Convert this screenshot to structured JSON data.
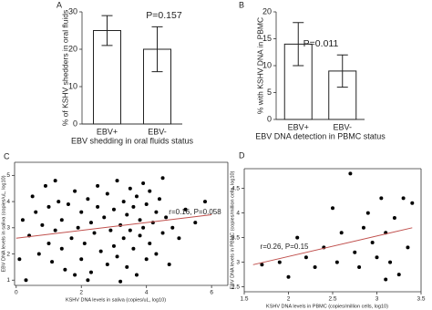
{
  "chart_data": [
    {
      "type": "bar",
      "panel_label": "A",
      "ylabel": "% of KSHV shedders in oral fluids",
      "xlabel": "EBV shedding in oral fluids status",
      "annotation": "P=0.157",
      "categories": [
        "EBV+",
        "EBV-"
      ],
      "values": [
        25,
        20
      ],
      "errors": [
        4,
        6
      ],
      "color": "#ffffff",
      "ylim": [
        0,
        30
      ],
      "yticks": [
        0,
        10,
        20,
        30
      ]
    },
    {
      "type": "bar",
      "panel_label": "B",
      "ylabel": "% with KSHV DNA in PBMC",
      "xlabel": "EBV DNA detection in PBMC status",
      "annotation": "P=0.011",
      "categories": [
        "EBV+",
        "EBV-"
      ],
      "values": [
        14,
        9
      ],
      "errors": [
        4,
        3
      ],
      "color": "#ffffff",
      "ylim": [
        0,
        20
      ],
      "yticks": [
        0,
        5,
        10,
        15,
        20
      ]
    },
    {
      "type": "scatter",
      "panel_label": "C",
      "ylabel": "EBV DNA levels in saliva (copies/uL, log10)",
      "xlabel": "KSHV DNA levels in saliva (copies/uL, log10)",
      "annotation": "r=0.16, P=0.058",
      "color": "#000000",
      "trend_color": "#c0504d",
      "x": [
        0.1,
        0.3,
        0.4,
        0.5,
        0.6,
        0.7,
        0.8,
        0.9,
        1.0,
        1.0,
        1.1,
        1.2,
        1.3,
        1.4,
        1.4,
        1.5,
        1.6,
        1.7,
        1.8,
        1.9,
        2.0,
        2.0,
        2.1,
        2.2,
        2.3,
        2.3,
        2.4,
        2.5,
        2.5,
        2.6,
        2.7,
        2.8,
        2.8,
        2.9,
        3.0,
        3.0,
        3.1,
        3.1,
        3.2,
        3.3,
        3.3,
        3.4,
        3.4,
        3.5,
        3.5,
        3.6,
        3.6,
        3.7,
        3.7,
        3.8,
        3.8,
        3.9,
        3.9,
        4.0,
        4.0,
        4.1,
        4.1,
        4.2,
        4.3,
        4.3,
        4.4,
        4.5,
        4.6,
        4.7,
        4.8,
        5.0,
        5.2,
        5.5,
        5.8,
        0.2,
        1.2,
        2.2,
        3.2,
        4.5,
        1.8
      ],
      "y": [
        1.8,
        1.0,
        2.7,
        4.2,
        3.6,
        2.0,
        3.1,
        4.6,
        2.4,
        3.8,
        1.7,
        2.9,
        4.0,
        3.3,
        2.2,
        1.4,
        3.9,
        2.6,
        4.4,
        3.0,
        1.8,
        3.6,
        2.4,
        4.1,
        3.2,
        1.3,
        2.8,
        4.6,
        3.8,
        2.1,
        3.4,
        1.6,
        4.3,
        2.9,
        3.7,
        2.3,
        4.8,
        1.9,
        3.1,
        4.0,
        2.6,
        3.5,
        1.5,
        4.5,
        2.9,
        3.8,
        2.2,
        4.2,
        1.2,
        3.3,
        2.7,
        4.7,
        3.0,
        1.8,
        3.9,
        2.4,
        4.4,
        3.2,
        2.0,
        3.6,
        4.1,
        2.8,
        3.4,
        1.6,
        3.0,
        2.6,
        3.7,
        3.2,
        4.0,
        3.3,
        4.8,
        1.0,
        0.95,
        4.9,
        1.2
      ],
      "trend_x": [
        0,
        6
      ],
      "trend_y": [
        2.6,
        3.5
      ],
      "xlim": [
        -0.05,
        6.5
      ],
      "xticks": [
        0,
        2,
        4,
        6
      ],
      "ylim": [
        0.8,
        5.5
      ],
      "yticks": [
        1,
        2,
        3,
        4,
        5
      ]
    },
    {
      "type": "scatter",
      "panel_label": "D",
      "ylabel": "EBV DNA levels in PBMC (copies/million cells, log10)",
      "xlabel": "KSHV DNA levels in PBMC (copies/million cells, log10)",
      "annotation": "r=0.26, P=0.15",
      "color": "#000000",
      "trend_color": "#c0504d",
      "x": [
        1.7,
        1.9,
        2.0,
        2.1,
        2.2,
        2.3,
        2.4,
        2.5,
        2.55,
        2.6,
        2.7,
        2.75,
        2.8,
        2.85,
        2.9,
        2.95,
        3.0,
        3.05,
        3.1,
        3.15,
        3.2,
        3.25,
        3.3,
        3.35,
        3.4,
        3.1
      ],
      "y": [
        2.95,
        3.0,
        2.7,
        3.5,
        3.1,
        2.9,
        3.3,
        4.1,
        3.0,
        3.6,
        4.8,
        3.2,
        2.9,
        3.7,
        4.0,
        3.4,
        3.1,
        4.3,
        3.6,
        3.0,
        3.9,
        2.75,
        4.3,
        3.3,
        4.2,
        2.65
      ],
      "trend_x": [
        1.6,
        3.4
      ],
      "trend_y": [
        2.95,
        3.7
      ],
      "xlim": [
        1.5,
        3.5
      ],
      "xticks": [
        1.5,
        2,
        2.5,
        3,
        3.5
      ],
      "ylim": [
        2.4,
        4.9
      ],
      "yticks": [
        2.5,
        3,
        3.5,
        4,
        4.5
      ]
    }
  ]
}
